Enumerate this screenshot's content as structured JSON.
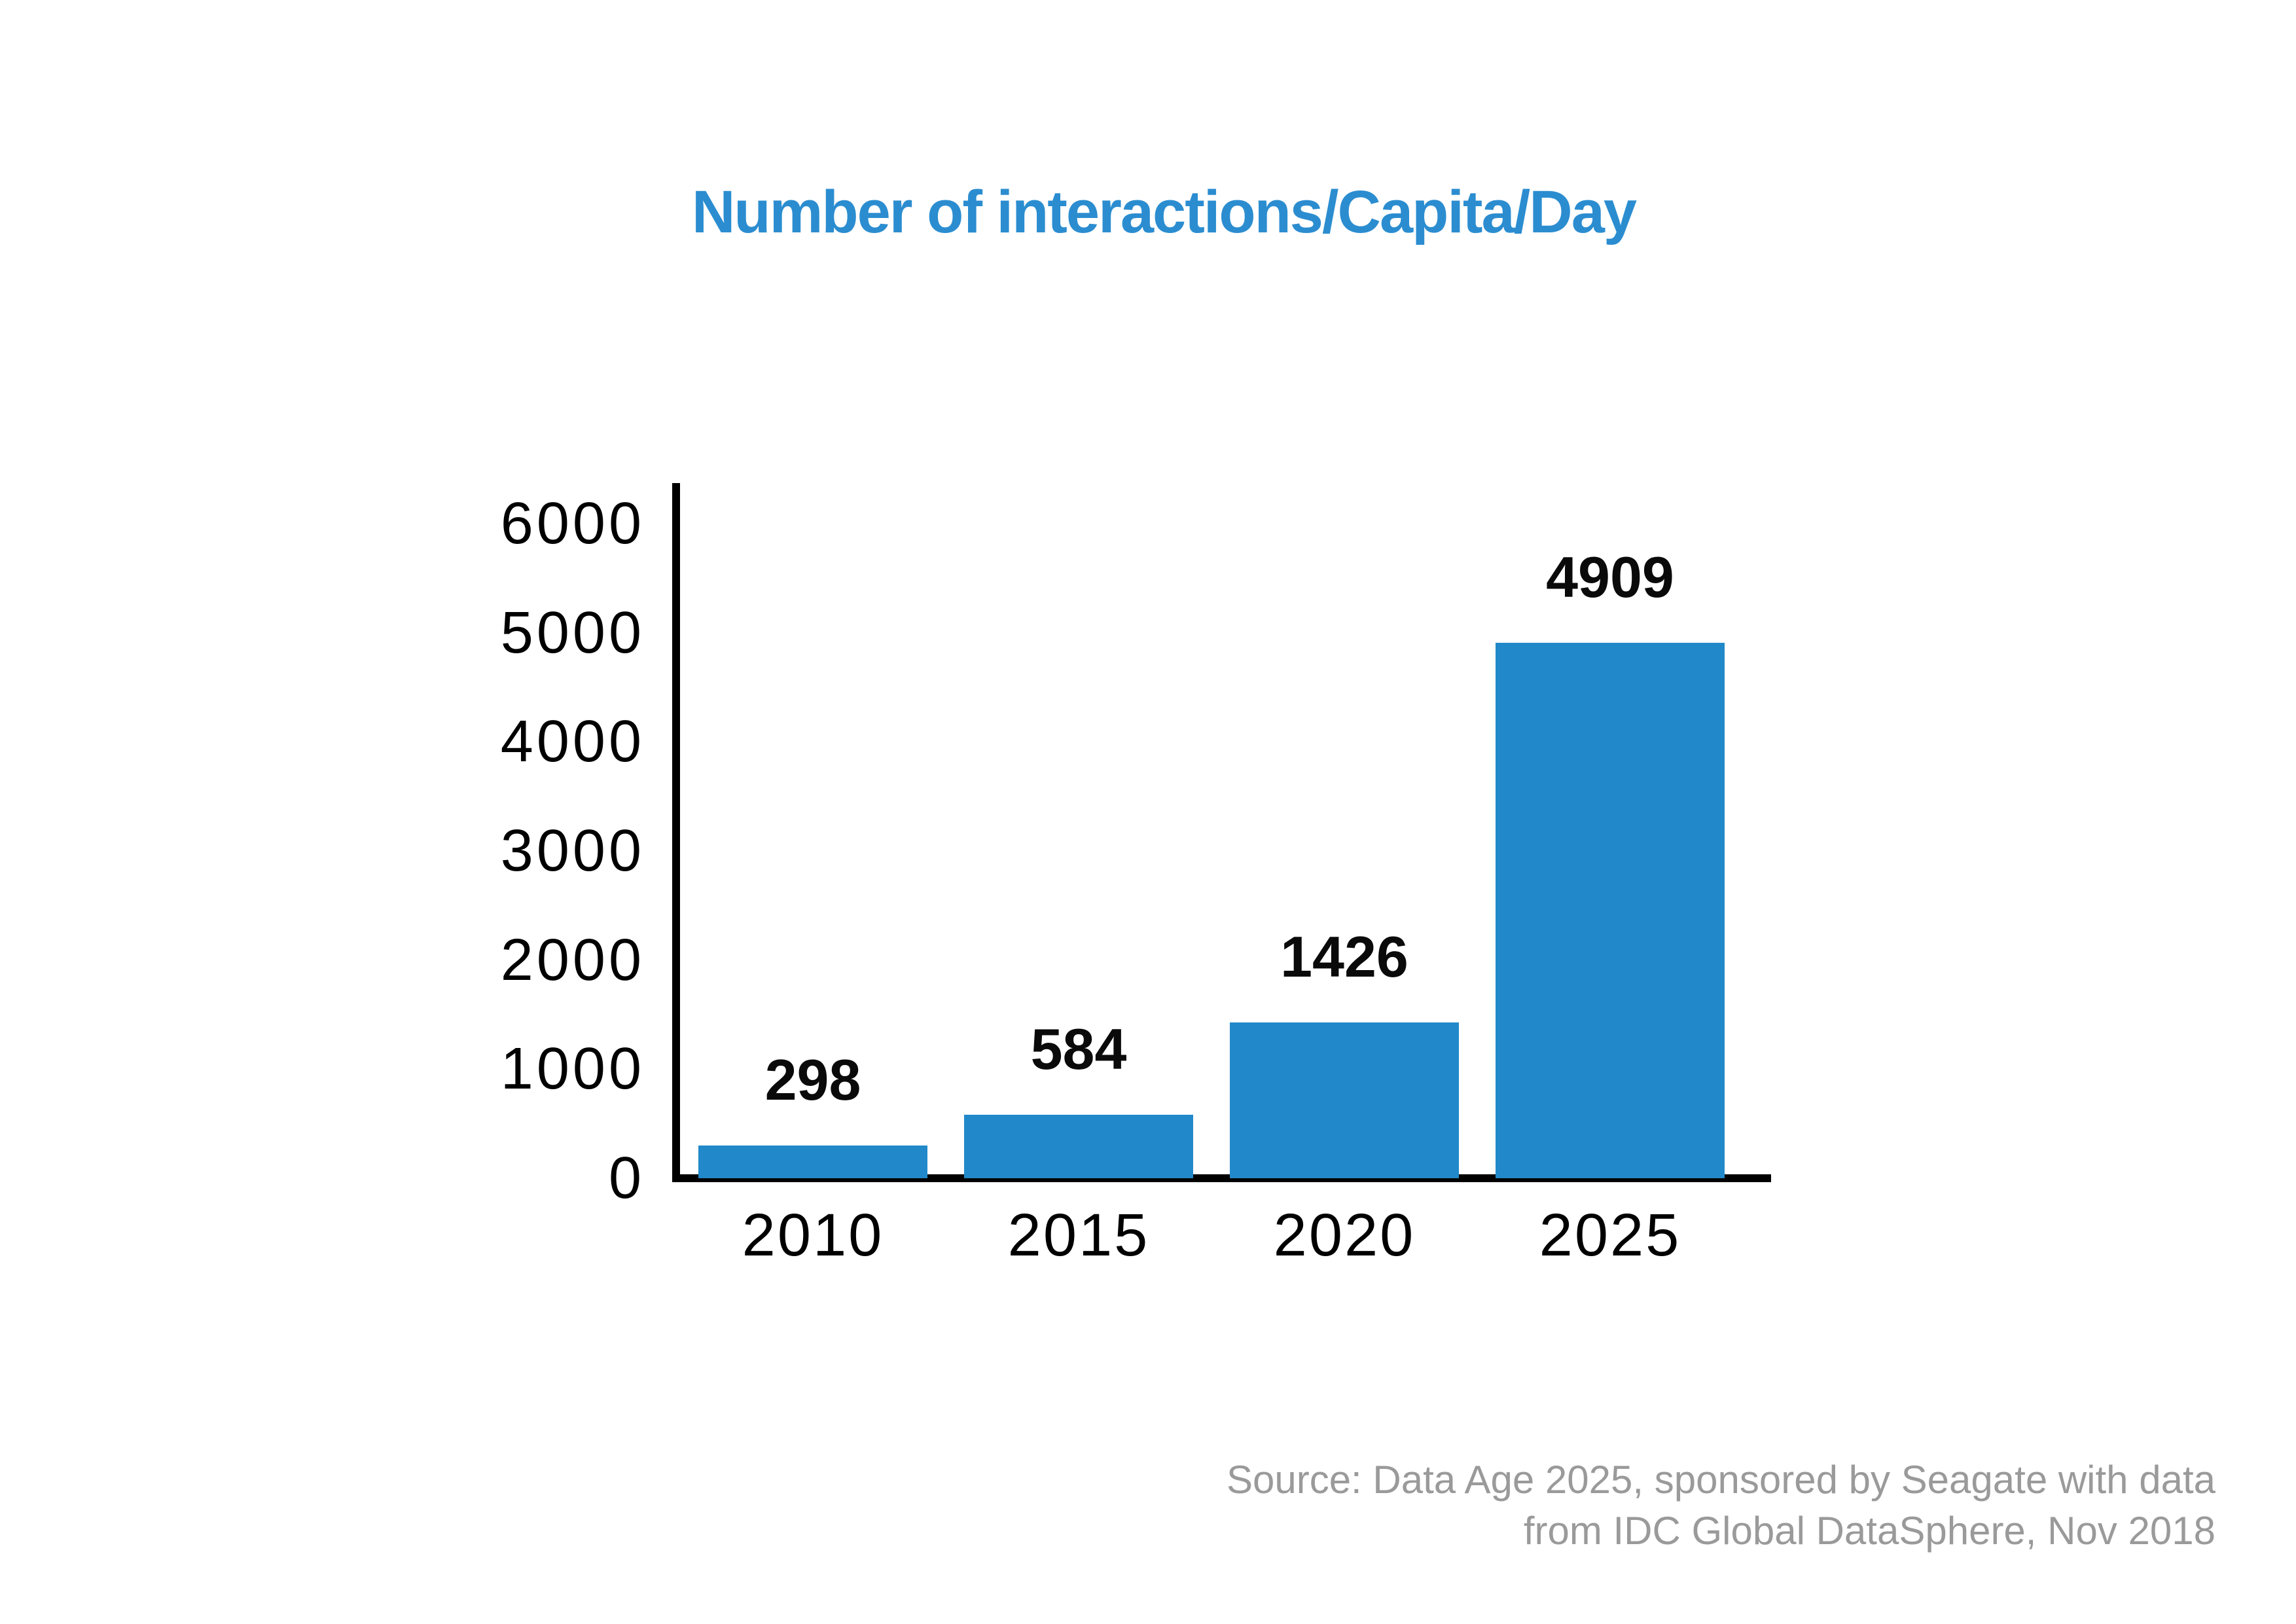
{
  "title": "Number of interactions/Capita/Day",
  "source": {
    "line1": "Source: Data Age 2025, sponsored by Seagate with data",
    "line2": "from IDC Global DataSphere, Nov 2018"
  },
  "colors": {
    "title": "#2b8dd0",
    "bar": "#2189c9",
    "axis": "#000000",
    "tick_label": "#000000",
    "value_label": "#0a0a0a",
    "source_text": "#9a9a9a",
    "background": "#ffffff"
  },
  "chart_data": {
    "type": "bar",
    "categories": [
      "2010",
      "2015",
      "2020",
      "2025"
    ],
    "values": [
      298,
      584,
      1426,
      4909
    ],
    "title": "Number of interactions/Capita/Day",
    "xlabel": "",
    "ylabel": "",
    "ylim": [
      0,
      6000
    ],
    "yticks": [
      0,
      1000,
      2000,
      3000,
      4000,
      5000,
      6000
    ],
    "grid": false,
    "legend": false,
    "bar_value_labels": true
  }
}
